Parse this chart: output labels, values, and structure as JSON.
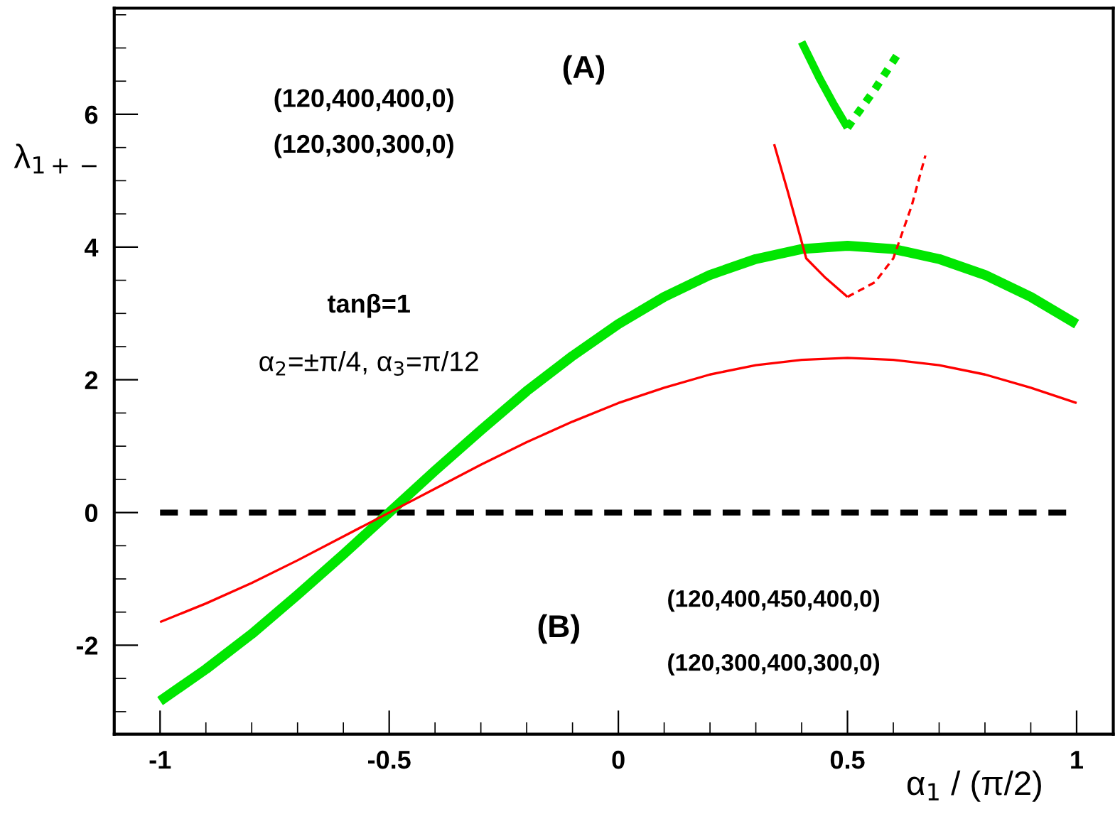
{
  "chart_data": {
    "type": "line",
    "xlabel": "α$_{1}$ / (π/2)",
    "ylabel": "λ$_{1+−}$",
    "xlim": [
      -1.1,
      1.08
    ],
    "ylim": [
      -3.34,
      7.6
    ],
    "xticks": [
      -1,
      -0.5,
      0,
      0.5,
      1
    ],
    "yticks": [
      -2,
      0,
      2,
      4,
      6
    ],
    "grid": false,
    "legend": false,
    "marker": "none",
    "ref_lines": [
      {
        "axis": "y",
        "value": 0,
        "color": "#000000",
        "line_style": "dashed"
      }
    ],
    "series": [
      {
        "color": "#00e600",
        "line_style": "solid",
        "x": [
          -1,
          -0.9,
          -0.8,
          -0.7,
          -0.6,
          -0.5,
          -0.4,
          -0.3,
          -0.2,
          -0.1,
          0,
          0.1,
          0.2,
          0.3,
          0.4,
          0.5,
          0.6,
          0.7,
          0.8,
          0.9,
          1
        ],
        "values": [
          -2.84,
          -2.36,
          -1.83,
          -1.24,
          -0.63,
          0,
          0.63,
          1.24,
          1.83,
          2.36,
          2.84,
          3.25,
          3.58,
          3.82,
          3.97,
          4.02,
          3.97,
          3.82,
          3.58,
          3.25,
          2.84
        ]
      },
      {
        "color": "#ff0000",
        "line_style": "solid",
        "x": [
          -1,
          -0.9,
          -0.8,
          -0.7,
          -0.6,
          -0.5,
          -0.4,
          -0.3,
          -0.2,
          -0.1,
          0,
          0.1,
          0.2,
          0.3,
          0.4,
          0.5,
          0.6,
          0.7,
          0.8,
          0.9,
          1
        ],
        "values": [
          -1.65,
          -1.37,
          -1.06,
          -0.72,
          -0.36,
          0,
          0.36,
          0.72,
          1.06,
          1.37,
          1.65,
          1.88,
          2.08,
          2.22,
          2.3,
          2.33,
          2.3,
          2.22,
          2.08,
          1.88,
          1.65
        ]
      },
      {
        "color": "#00e600",
        "line_style": "solid",
        "x": [
          0.4,
          0.44,
          0.47,
          0.5
        ],
        "values": [
          7.09,
          6.53,
          6.15,
          5.8
        ]
      },
      {
        "color": "#00e600",
        "line_style": "dotted",
        "x": [
          0.5,
          0.56,
          0.61
        ],
        "values": [
          5.8,
          6.38,
          6.91
        ]
      },
      {
        "color": "#ff0000",
        "line_style": "solid",
        "x": [
          0.34,
          0.37,
          0.41,
          0.45,
          0.5
        ],
        "values": [
          5.55,
          4.83,
          3.83,
          3.55,
          3.25
        ]
      },
      {
        "color": "#ff0000",
        "line_style": "dashed",
        "x": [
          0.5,
          0.56,
          0.6,
          0.64,
          0.67
        ],
        "values": [
          3.25,
          3.47,
          3.83,
          4.62,
          5.38
        ]
      }
    ],
    "annotations": [
      "(A)",
      "(120,400,400,0)",
      "(120,300,300,0)",
      "tanβ=1",
      "α$_{2}$=±π/4, α$_{3}$=π/12",
      "(B)",
      "(120,400,450,400,0)",
      "(120,300,400,300,0)"
    ]
  }
}
